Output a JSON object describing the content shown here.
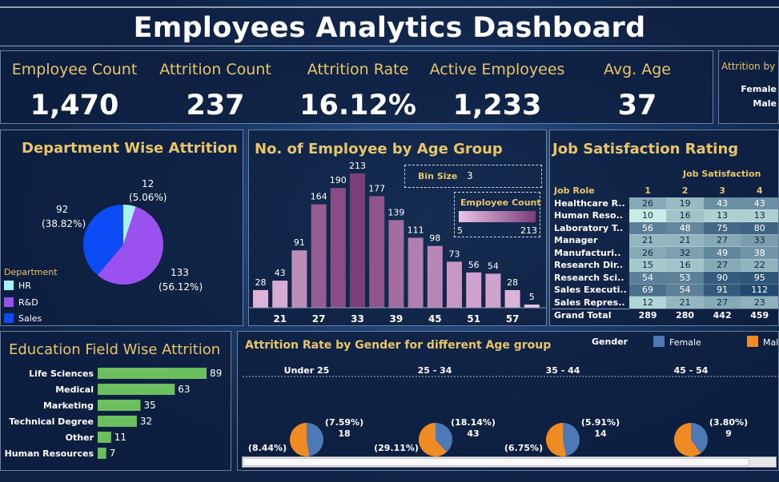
{
  "title": "Employees Analytics Dashboard",
  "kpis": [
    {
      "label": "Employee Count",
      "value": "1,470"
    },
    {
      "label": "Attrition Count",
      "value": "237"
    },
    {
      "label": "Attrition Rate",
      "value": "16.12%"
    },
    {
      "label": "Active Employees",
      "value": "1,233"
    },
    {
      "label": "Avg. Age",
      "value": "37"
    }
  ],
  "attrition_by_gender": {
    "title": "Attrition by",
    "rows": [
      "Female",
      "Male"
    ]
  },
  "department": {
    "title": "Department Wise Attrition",
    "legend_title": "Department",
    "labels": [
      {
        "count": "12",
        "pct": "(5.06%)"
      },
      {
        "count": "133",
        "pct": "(56.12%)"
      },
      {
        "count": "92",
        "pct": "(38.82%)"
      }
    ]
  },
  "age_group": {
    "title": "No. of Employee by Age Group",
    "bin_size_label": "Bin Size",
    "bin_size_value": "3",
    "legend_title": "Employee Count",
    "legend_min": "5",
    "legend_max": "213"
  },
  "job_satisfaction": {
    "title": "Job Satisfaction Rating",
    "header_group": "Job Satisfaction",
    "role_header": "Job Role",
    "levels": [
      "1",
      "2",
      "3",
      "4"
    ],
    "rows": [
      {
        "role": "Healthcare R..",
        "values": [
          "26",
          "19",
          "43",
          "43"
        ]
      },
      {
        "role": "Human Reso..",
        "values": [
          "10",
          "16",
          "13",
          "13"
        ]
      },
      {
        "role": "Laboratory T..",
        "values": [
          "56",
          "48",
          "75",
          "80"
        ]
      },
      {
        "role": "Manager",
        "values": [
          "21",
          "21",
          "27",
          "33"
        ]
      },
      {
        "role": "Manufacturi..",
        "values": [
          "26",
          "32",
          "49",
          "38"
        ]
      },
      {
        "role": "Research Dir..",
        "values": [
          "15",
          "16",
          "27",
          "22"
        ]
      },
      {
        "role": "Research Sci..",
        "values": [
          "54",
          "53",
          "90",
          "95"
        ]
      },
      {
        "role": "Sales Executi..",
        "values": [
          "69",
          "54",
          "91",
          "112"
        ]
      },
      {
        "role": "Sales Repres..",
        "values": [
          "12",
          "21",
          "27",
          "23"
        ]
      }
    ],
    "total": {
      "role": "Grand Total",
      "values": [
        "289",
        "280",
        "442",
        "459"
      ]
    }
  },
  "education": {
    "title": "Education Field Wise Attrition"
  },
  "gender_age": {
    "title": "Attrition Rate by Gender for different Age group",
    "legend_title": "Gender",
    "legend_items": [
      "Female",
      "Mal"
    ],
    "groups": [
      {
        "name": "Under 25",
        "pct_top": "(7.59%)",
        "count_top": "18",
        "pct_bottom": "(8.44%)"
      },
      {
        "name": "25 - 34",
        "pct_top": "(18.14%)",
        "count_top": "43",
        "pct_bottom": "(29.11%)"
      },
      {
        "name": "35 - 44",
        "pct_top": "(5.91%)",
        "count_top": "14",
        "pct_bottom": "(6.75%)"
      },
      {
        "name": "45 - 54",
        "pct_top": "(3.80%)",
        "count_top": "9",
        "pct_bottom": ""
      }
    ]
  },
  "colors": {
    "gold": "#e8c56a",
    "hr": "#a6f0f7",
    "rnd": "#9b50f0",
    "sales": "#0b4cf7",
    "edu_bar": "#6cbf5f",
    "female": "#4d79b8",
    "male": "#f08a22"
  },
  "chart_data": [
    {
      "type": "pie",
      "title": "Department Wise Attrition",
      "legend_title": "Department",
      "categories": [
        "HR",
        "R&D",
        "Sales"
      ],
      "values": [
        12,
        133,
        92
      ],
      "percent": [
        5.06,
        56.12,
        38.82
      ],
      "colors": [
        "#a6f0f7",
        "#9b50f0",
        "#0b4cf7"
      ],
      "legend_position": "bottom-left"
    },
    {
      "type": "bar",
      "title": "No. of Employee by Age Group",
      "bin_size": 3,
      "x": [
        18,
        21,
        24,
        27,
        30,
        33,
        36,
        39,
        42,
        45,
        48,
        51,
        54,
        57,
        60
      ],
      "tick_labels": [
        "21",
        "27",
        "33",
        "39",
        "45",
        "51",
        "57"
      ],
      "values": [
        28,
        43,
        91,
        164,
        190,
        213,
        177,
        139,
        111,
        98,
        73,
        56,
        54,
        28,
        5
      ],
      "color_range": [
        5,
        213
      ]
    },
    {
      "type": "table",
      "title": "Job Satisfaction Rating",
      "columns": [
        "Job Role",
        "1",
        "2",
        "3",
        "4"
      ],
      "rows": [
        [
          "Healthcare R..",
          26,
          19,
          43,
          43
        ],
        [
          "Human Reso..",
          10,
          16,
          13,
          13
        ],
        [
          "Laboratory T..",
          56,
          48,
          75,
          80
        ],
        [
          "Manager",
          21,
          21,
          27,
          33
        ],
        [
          "Manufacturi..",
          26,
          32,
          49,
          38
        ],
        [
          "Research Dir..",
          15,
          16,
          27,
          22
        ],
        [
          "Research Sci..",
          54,
          53,
          90,
          95
        ],
        [
          "Sales Executi..",
          69,
          54,
          91,
          112
        ],
        [
          "Sales Repres..",
          12,
          21,
          27,
          23
        ]
      ],
      "grand_total": [
        289,
        280,
        442,
        459
      ]
    },
    {
      "type": "bar",
      "orientation": "horizontal",
      "title": "Education Field Wise Attrition",
      "categories": [
        "Life Sciences",
        "Medical",
        "Marketing",
        "Technical Degree",
        "Other",
        "Human Resources"
      ],
      "values": [
        89,
        63,
        35,
        32,
        11,
        7
      ],
      "color": "#6cbf5f"
    },
    {
      "type": "pie",
      "title": "Attrition Rate by Gender for different Age group",
      "legend_title": "Gender",
      "legend": [
        "Female",
        "Male"
      ],
      "groups": [
        "Under 25",
        "25 - 34",
        "35 - 44",
        "45 - 54"
      ],
      "female_count": [
        18,
        43,
        14,
        9
      ],
      "female_percent": [
        7.59,
        18.14,
        5.91,
        3.8
      ],
      "male_percent": [
        8.44,
        29.11,
        6.75,
        null
      ],
      "colors": [
        "#4d79b8",
        "#f08a22"
      ]
    }
  ]
}
